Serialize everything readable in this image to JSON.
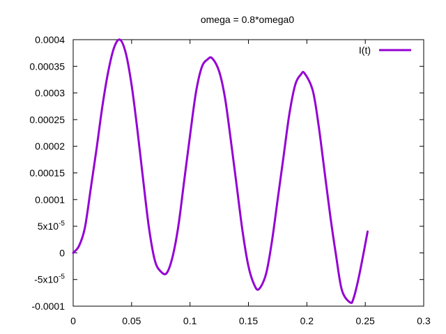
{
  "chart_data": {
    "type": "line",
    "title": "omega  = 0.8*omega0",
    "xlabel": "",
    "ylabel": "",
    "xlim": [
      0,
      0.3
    ],
    "ylim": [
      -0.0001,
      0.0004
    ],
    "x_ticks": [
      {
        "value": 0,
        "label": "0"
      },
      {
        "value": 0.05,
        "label": "0.05"
      },
      {
        "value": 0.1,
        "label": "0.1"
      },
      {
        "value": 0.15,
        "label": "0.15"
      },
      {
        "value": 0.2,
        "label": "0.2"
      },
      {
        "value": 0.25,
        "label": "0.25"
      },
      {
        "value": 0.3,
        "label": "0.3"
      }
    ],
    "y_ticks": [
      {
        "value": 0.0004,
        "label": "0.0004"
      },
      {
        "value": 0.00035,
        "label": "0.00035"
      },
      {
        "value": 0.0003,
        "label": "0.0003"
      },
      {
        "value": 0.00025,
        "label": "0.00025"
      },
      {
        "value": 0.0002,
        "label": "0.0002"
      },
      {
        "value": 0.00015,
        "label": "0.00015"
      },
      {
        "value": 0.0001,
        "label": "0.0001"
      },
      {
        "value": 5e-05,
        "label": "5x10",
        "exponent": "-5"
      },
      {
        "value": 0,
        "label": "0"
      },
      {
        "value": -5e-05,
        "label": "-5x10",
        "exponent": "-5"
      },
      {
        "value": -0.0001,
        "label": "-0.0001"
      }
    ],
    "grid": false,
    "legend_position": "top-right",
    "series": [
      {
        "name": "I(t)",
        "color": "#9400d3",
        "x": [
          0,
          0.005,
          0.01,
          0.015,
          0.02,
          0.025,
          0.03,
          0.035,
          0.04,
          0.045,
          0.05,
          0.055,
          0.06,
          0.065,
          0.07,
          0.075,
          0.08,
          0.085,
          0.09,
          0.095,
          0.1,
          0.105,
          0.11,
          0.115,
          0.119,
          0.125,
          0.13,
          0.135,
          0.14,
          0.145,
          0.15,
          0.155,
          0.159,
          0.165,
          0.17,
          0.175,
          0.18,
          0.185,
          0.19,
          0.195,
          0.198,
          0.205,
          0.21,
          0.215,
          0.22,
          0.225,
          0.23,
          0.237,
          0.24,
          0.245,
          0.252
        ],
        "y": [
          0,
          1.3e-05,
          4.7e-05,
          0.00012,
          0.000195,
          0.000275,
          0.00034,
          0.000385,
          0.0004,
          0.000375,
          0.000315,
          0.00023,
          0.000135,
          4.5e-05,
          -1.5e-05,
          -3.5e-05,
          -3.8e-05,
          -8e-06,
          5e-05,
          0.000135,
          0.00022,
          0.0003,
          0.000348,
          0.000363,
          0.000365,
          0.00034,
          0.00029,
          0.00021,
          0.000125,
          4e-05,
          -2.5e-05,
          -6e-05,
          -6.8e-05,
          -4e-05,
          2e-05,
          0.0001,
          0.00018,
          0.00026,
          0.000315,
          0.000335,
          0.000337,
          0.000305,
          0.00024,
          0.000155,
          7e-05,
          -5e-06,
          -7e-05,
          -9.3e-05,
          -8.5e-05,
          -4e-05,
          4e-05
        ]
      }
    ]
  }
}
